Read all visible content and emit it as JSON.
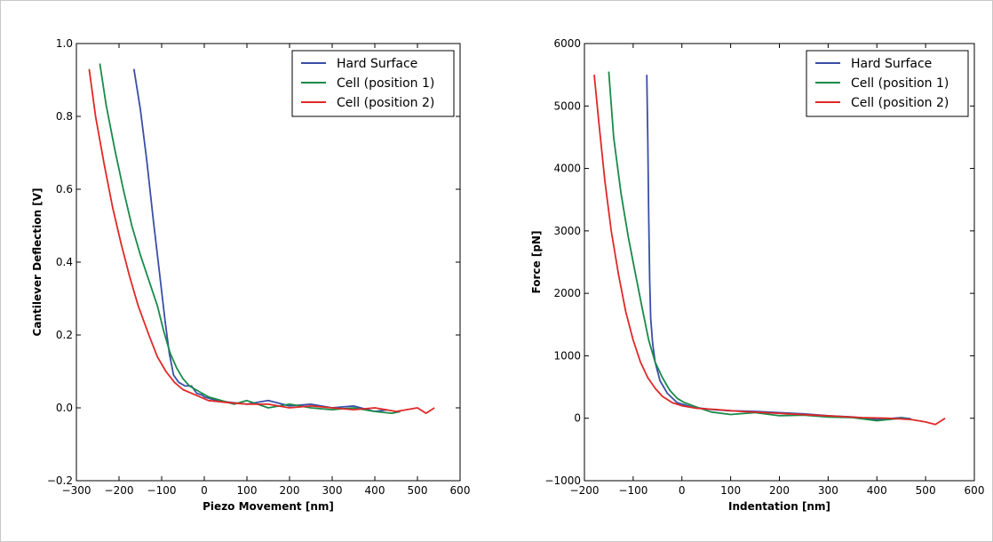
{
  "chart_data": [
    {
      "type": "line",
      "title": "",
      "xlabel": "Piezo Movement [nm]",
      "ylabel": "Cantilever Deflection [V]",
      "xlim": [
        -300,
        600
      ],
      "ylim": [
        -0.2,
        1.0
      ],
      "xticks": [
        -300,
        -200,
        -100,
        0,
        100,
        200,
        300,
        400,
        500,
        600
      ],
      "xtick_labels": [
        "−300",
        "−200",
        "−100",
        "0",
        "100",
        "200",
        "300",
        "400",
        "500",
        "600"
      ],
      "yticks": [
        -0.2,
        0.0,
        0.2,
        0.4,
        0.6,
        0.8,
        1.0
      ],
      "ytick_labels": [
        "−0.2",
        "0.0",
        "0.2",
        "0.4",
        "0.6",
        "0.8",
        "1.0"
      ],
      "grid": false,
      "legend": {
        "position": "top-right",
        "entries": [
          "Hard Surface",
          "Cell (position 1)",
          "Cell (position 2)"
        ]
      },
      "series": [
        {
          "name": "Hard Surface",
          "color": "#3a4ea8",
          "points": [
            [
              -165,
              0.93
            ],
            [
              -150,
              0.82
            ],
            [
              -135,
              0.68
            ],
            [
              -120,
              0.52
            ],
            [
              -105,
              0.37
            ],
            [
              -92,
              0.24
            ],
            [
              -82,
              0.15
            ],
            [
              -72,
              0.09
            ],
            [
              -60,
              0.07
            ],
            [
              -45,
              0.06
            ],
            [
              -30,
              0.06
            ],
            [
              -18,
              0.04
            ],
            [
              -5,
              0.035
            ],
            [
              0,
              0.03
            ],
            [
              30,
              0.02
            ],
            [
              60,
              0.015
            ],
            [
              100,
              0.01
            ],
            [
              150,
              0.02
            ],
            [
              200,
              0.005
            ],
            [
              250,
              0.01
            ],
            [
              300,
              0.0
            ],
            [
              350,
              0.005
            ],
            [
              400,
              -0.01
            ],
            [
              430,
              -0.005
            ]
          ]
        },
        {
          "name": "Cell (position 1)",
          "color": "#1a8a4a",
          "points": [
            [
              -245,
              0.945
            ],
            [
              -230,
              0.83
            ],
            [
              -210,
              0.71
            ],
            [
              -190,
              0.6
            ],
            [
              -170,
              0.5
            ],
            [
              -150,
              0.42
            ],
            [
              -130,
              0.35
            ],
            [
              -110,
              0.28
            ],
            [
              -95,
              0.21
            ],
            [
              -80,
              0.15
            ],
            [
              -65,
              0.11
            ],
            [
              -50,
              0.08
            ],
            [
              -35,
              0.06
            ],
            [
              -20,
              0.05
            ],
            [
              -5,
              0.04
            ],
            [
              10,
              0.03
            ],
            [
              40,
              0.02
            ],
            [
              70,
              0.01
            ],
            [
              100,
              0.02
            ],
            [
              150,
              0.0
            ],
            [
              200,
              0.01
            ],
            [
              250,
              0.0
            ],
            [
              300,
              -0.005
            ],
            [
              350,
              0.0
            ],
            [
              400,
              -0.01
            ],
            [
              440,
              -0.015
            ],
            [
              460,
              -0.01
            ]
          ]
        },
        {
          "name": "Cell (position 2)",
          "color": "#e02828",
          "points": [
            [
              -270,
              0.93
            ],
            [
              -255,
              0.8
            ],
            [
              -235,
              0.67
            ],
            [
              -215,
              0.55
            ],
            [
              -195,
              0.45
            ],
            [
              -175,
              0.36
            ],
            [
              -155,
              0.28
            ],
            [
              -130,
              0.2
            ],
            [
              -110,
              0.14
            ],
            [
              -90,
              0.1
            ],
            [
              -70,
              0.07
            ],
            [
              -50,
              0.05
            ],
            [
              -30,
              0.04
            ],
            [
              -10,
              0.03
            ],
            [
              10,
              0.02
            ],
            [
              50,
              0.015
            ],
            [
              100,
              0.01
            ],
            [
              150,
              0.01
            ],
            [
              200,
              0.0
            ],
            [
              250,
              0.005
            ],
            [
              300,
              0.0
            ],
            [
              350,
              -0.005
            ],
            [
              400,
              0.0
            ],
            [
              450,
              -0.01
            ],
            [
              500,
              0.0
            ],
            [
              520,
              -0.015
            ],
            [
              540,
              0.0
            ]
          ]
        }
      ]
    },
    {
      "type": "line",
      "title": "",
      "xlabel": "Indentation [nm]",
      "ylabel": "Force [pN]",
      "xlim": [
        -200,
        600
      ],
      "ylim": [
        -1000,
        6000
      ],
      "xticks": [
        -200,
        -100,
        0,
        100,
        200,
        300,
        400,
        500,
        600
      ],
      "xtick_labels": [
        "−200",
        "−100",
        "0",
        "100",
        "200",
        "300",
        "400",
        "500",
        "600"
      ],
      "yticks": [
        -1000,
        0,
        1000,
        2000,
        3000,
        4000,
        5000,
        6000
      ],
      "ytick_labels": [
        "−1000",
        "0",
        "1000",
        "2000",
        "3000",
        "4000",
        "5000",
        "6000"
      ],
      "grid": false,
      "legend": {
        "position": "top-right",
        "entries": [
          "Hard Surface",
          "Cell (position 1)",
          "Cell (position 2)"
        ]
      },
      "series": [
        {
          "name": "Hard Surface",
          "color": "#3a4ea8",
          "points": [
            [
              -72,
              5500
            ],
            [
              -70,
              4500
            ],
            [
              -68,
              3200
            ],
            [
              -66,
              2200
            ],
            [
              -64,
              1600
            ],
            [
              -60,
              1200
            ],
            [
              -55,
              900
            ],
            [
              -45,
              600
            ],
            [
              -30,
              400
            ],
            [
              -10,
              250
            ],
            [
              20,
              180
            ],
            [
              60,
              140
            ],
            [
              100,
              120
            ],
            [
              150,
              110
            ],
            [
              200,
              90
            ],
            [
              250,
              70
            ],
            [
              300,
              40
            ],
            [
              350,
              20
            ],
            [
              400,
              -20
            ],
            [
              450,
              10
            ],
            [
              470,
              -10
            ]
          ]
        },
        {
          "name": "Cell (position 1)",
          "color": "#1a8a4a",
          "points": [
            [
              -150,
              5550
            ],
            [
              -140,
              4500
            ],
            [
              -125,
              3600
            ],
            [
              -110,
              2900
            ],
            [
              -95,
              2300
            ],
            [
              -80,
              1700
            ],
            [
              -68,
              1250
            ],
            [
              -55,
              900
            ],
            [
              -40,
              650
            ],
            [
              -25,
              450
            ],
            [
              -10,
              320
            ],
            [
              5,
              250
            ],
            [
              30,
              180
            ],
            [
              60,
              100
            ],
            [
              100,
              60
            ],
            [
              150,
              90
            ],
            [
              200,
              40
            ],
            [
              250,
              50
            ],
            [
              300,
              20
            ],
            [
              350,
              10
            ],
            [
              400,
              -40
            ],
            [
              450,
              0
            ],
            [
              470,
              -20
            ]
          ]
        },
        {
          "name": "Cell (position 2)",
          "color": "#e02828",
          "points": [
            [
              -180,
              5500
            ],
            [
              -170,
              4700
            ],
            [
              -158,
              3800
            ],
            [
              -145,
              3000
            ],
            [
              -130,
              2300
            ],
            [
              -115,
              1700
            ],
            [
              -100,
              1250
            ],
            [
              -85,
              900
            ],
            [
              -70,
              650
            ],
            [
              -55,
              480
            ],
            [
              -40,
              350
            ],
            [
              -20,
              250
            ],
            [
              0,
              200
            ],
            [
              30,
              160
            ],
            [
              70,
              140
            ],
            [
              120,
              110
            ],
            [
              170,
              90
            ],
            [
              220,
              70
            ],
            [
              270,
              50
            ],
            [
              320,
              30
            ],
            [
              370,
              10
            ],
            [
              420,
              0
            ],
            [
              470,
              -20
            ],
            [
              500,
              -60
            ],
            [
              520,
              -100
            ],
            [
              540,
              0
            ]
          ]
        }
      ]
    }
  ]
}
